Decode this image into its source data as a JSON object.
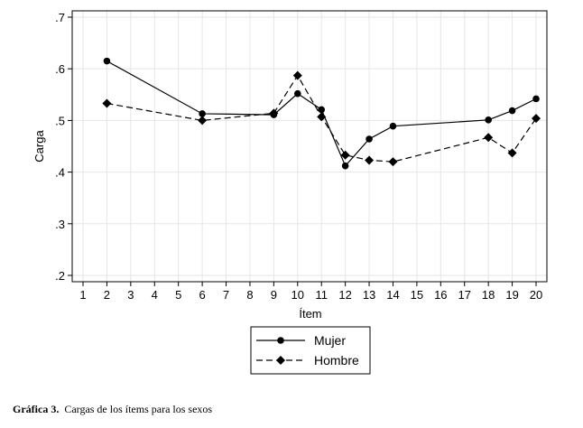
{
  "caption": {
    "label": "Gráfica 3.",
    "text": "Cargas de los ítems  para los sexos"
  },
  "chart_data": {
    "type": "line",
    "xlabel": "Ítem",
    "ylabel": "Carga",
    "xlim": [
      1,
      20
    ],
    "ylim": [
      0.2,
      0.7
    ],
    "x_ticks": [
      1,
      2,
      3,
      4,
      5,
      6,
      7,
      8,
      9,
      10,
      11,
      12,
      13,
      14,
      15,
      16,
      17,
      18,
      19,
      20
    ],
    "y_ticks": [
      0.2,
      0.3,
      0.4,
      0.5,
      0.6,
      0.7
    ],
    "y_tick_labels": [
      ".2",
      ".3",
      ".4",
      ".5",
      ".6",
      ".7"
    ],
    "grid": true,
    "legend_position": "bottom",
    "series": [
      {
        "name": "Mujer",
        "marker": "circle",
        "line_style": "solid",
        "color": "#000000",
        "x": [
          2,
          6,
          9,
          10,
          11,
          12,
          13,
          14,
          18,
          19,
          20
        ],
        "y": [
          0.615,
          0.513,
          0.511,
          0.552,
          0.521,
          0.412,
          0.464,
          0.489,
          0.501,
          0.519,
          0.542
        ]
      },
      {
        "name": "Hombre",
        "marker": "diamond",
        "line_style": "dashed",
        "color": "#000000",
        "x": [
          2,
          6,
          9,
          10,
          11,
          12,
          13,
          14,
          18,
          19,
          20
        ],
        "y": [
          0.533,
          0.5,
          0.514,
          0.587,
          0.507,
          0.433,
          0.423,
          0.42,
          0.467,
          0.437,
          0.504
        ]
      }
    ]
  }
}
